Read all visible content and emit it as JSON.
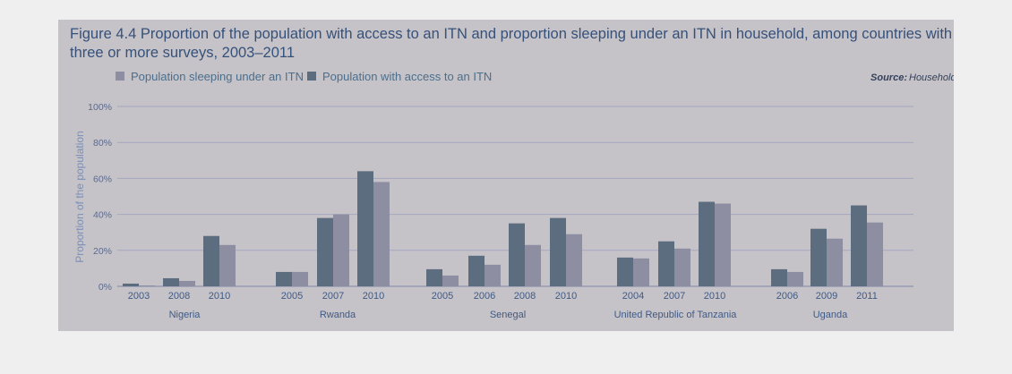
{
  "chart_data": {
    "type": "bar",
    "title": "Figure 4.4 Proportion of the population with access to an ITN and proportion sleeping under an ITN in household, among countries with three or more surveys, 2003–2011",
    "title_lines": [
      "Figure 4.4 Proportion of the population with access to an ITN and proportion sleeping under an ITN in household, among countries with",
      "three or more surveys, 2003–2011"
    ],
    "source_label": "Source:",
    "source_value": "Household surveys",
    "ylabel": "Proportion of the population",
    "ylim": [
      0,
      100
    ],
    "yticks": [
      "0%",
      "20%",
      "40%",
      "60%",
      "80%",
      "100%"
    ],
    "grid": true,
    "legend_position": "top-left",
    "series": [
      {
        "name": "Population sleeping under an ITN",
        "color": "#8e8ea2"
      },
      {
        "name": "Population with access to an ITN",
        "color": "#5b6d7e"
      }
    ],
    "groups": [
      {
        "country": "Nigeria",
        "years": [
          "2003",
          "2008",
          "2010"
        ],
        "access": [
          1.5,
          4.5,
          28
        ],
        "sleeping": [
          0.5,
          3,
          23
        ]
      },
      {
        "country": "Rwanda",
        "years": [
          "2005",
          "2007",
          "2010"
        ],
        "access": [
          8,
          38,
          64
        ],
        "sleeping": [
          8,
          40,
          58
        ]
      },
      {
        "country": "Senegal",
        "years": [
          "2005",
          "2006",
          "2008",
          "2010"
        ],
        "access": [
          9.5,
          17,
          35,
          38
        ],
        "sleeping": [
          6,
          12,
          23,
          29
        ]
      },
      {
        "country": "United Republic of Tanzania",
        "years": [
          "2004",
          "2007",
          "2010"
        ],
        "access": [
          16,
          25,
          47
        ],
        "sleeping": [
          15.5,
          21,
          46
        ]
      },
      {
        "country": "Uganda",
        "years": [
          "2006",
          "2009",
          "2011"
        ],
        "access": [
          9.5,
          32,
          45
        ],
        "sleeping": [
          8,
          26.5,
          35.5
        ]
      }
    ]
  }
}
